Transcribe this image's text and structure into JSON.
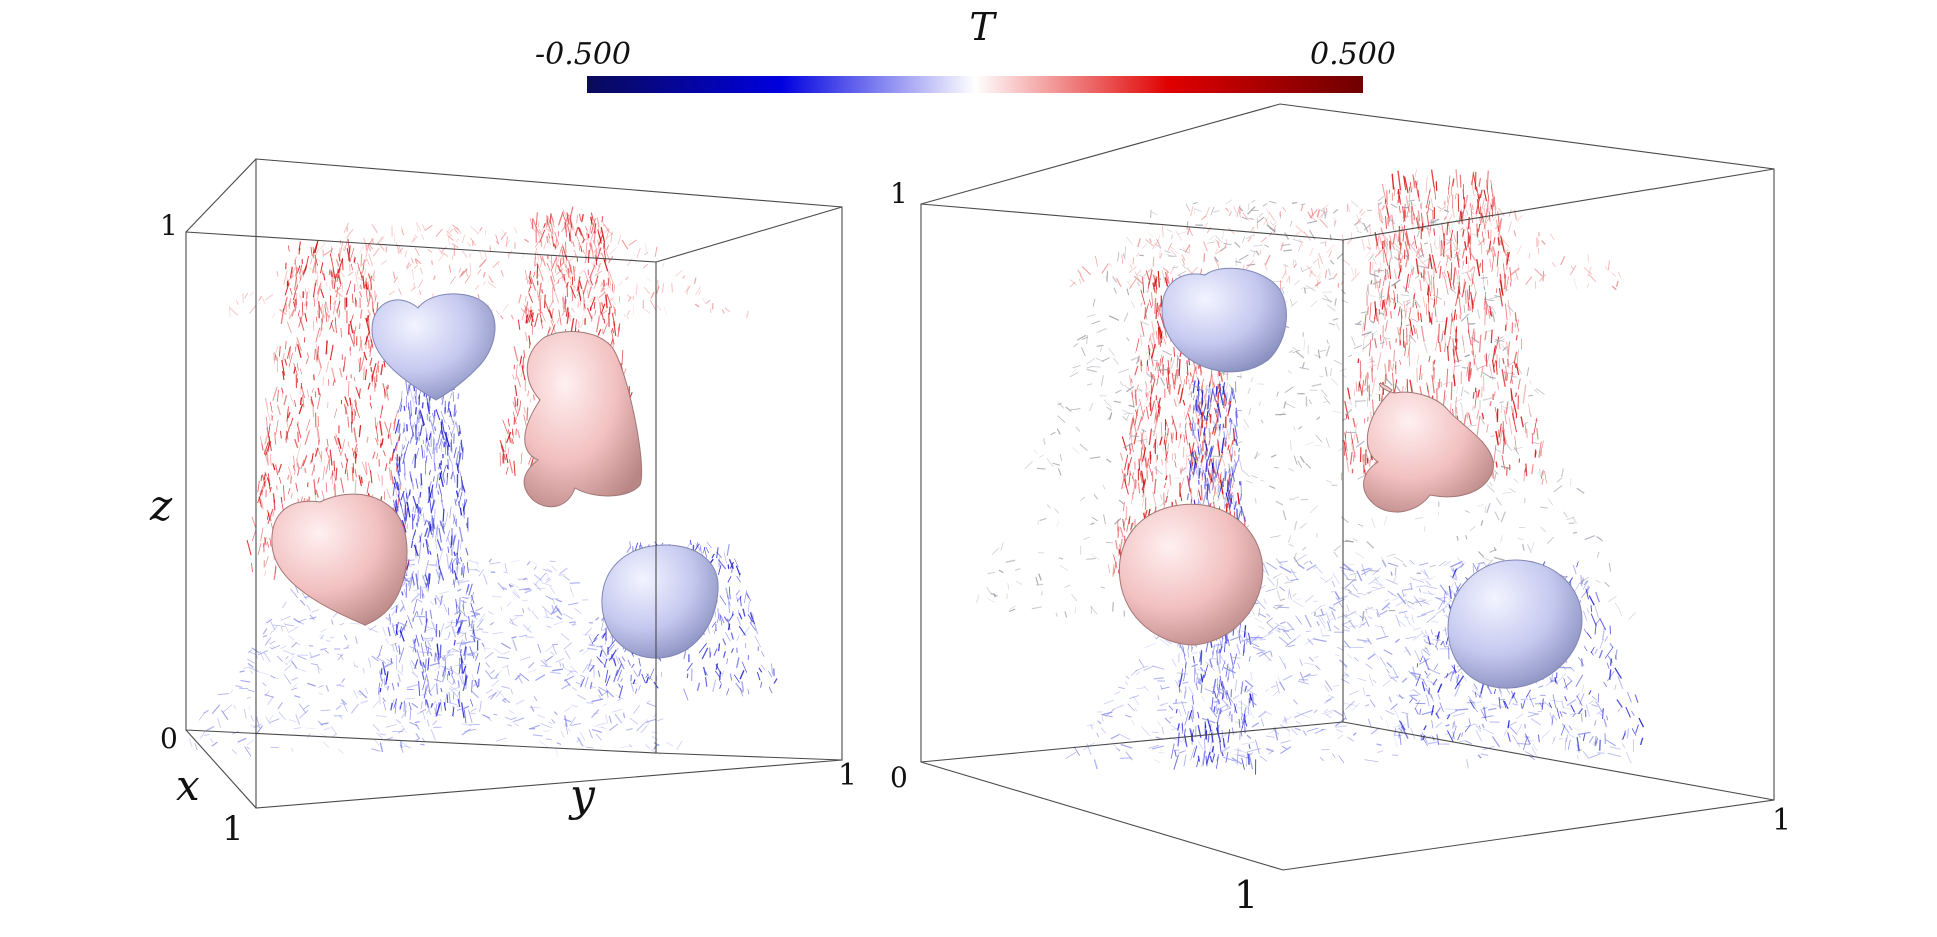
{
  "colorbar": {
    "title": "T",
    "min_label": "-0.500",
    "max_label": "0.500",
    "min": -0.5,
    "max": 0.5,
    "colors": [
      "#0a0a5a",
      "#0000e0",
      "#ffffff",
      "#e00000",
      "#6e0000"
    ]
  },
  "left_panel": {
    "z_label": "z",
    "x_label": "x",
    "y_label": "y",
    "z_min_tick": "0",
    "z_max_tick": "1",
    "x_tick": "1",
    "y_tick": "1"
  },
  "right_panel": {
    "z_min_tick": "0",
    "z_max_tick": "1",
    "x_tick": "1",
    "y_tick": "1"
  },
  "colors": {
    "hot_plume": "#d40000",
    "cold_plume": "#1010d0",
    "hot_body": "#f3c4c4",
    "cold_body": "#c9ccf0",
    "frame": "#4a4a4a"
  }
}
